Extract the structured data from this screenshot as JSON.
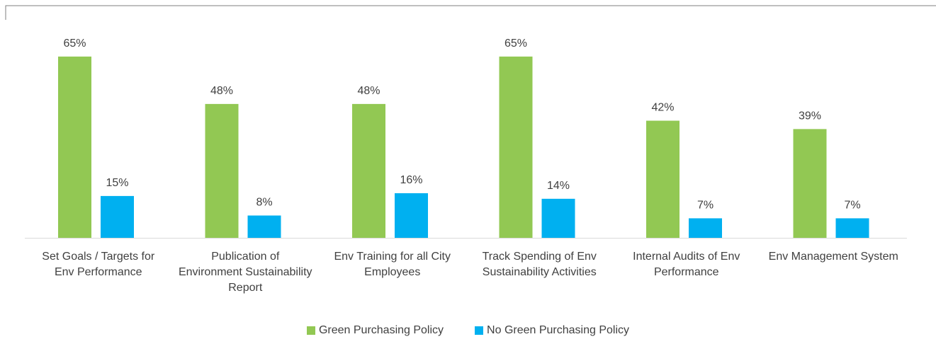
{
  "chart_data": {
    "type": "bar",
    "categories": [
      "Set Goals / Targets for Env Performance",
      "Publication of Environment Sustainability Report",
      "Env Training for all City Employees",
      "Track Spending of Env Sustainability Activities",
      "Internal Audits of Env Performance",
      "Env Management System"
    ],
    "series": [
      {
        "name": "Green Purchasing Policy",
        "color": "#92c853",
        "values": [
          65,
          48,
          48,
          65,
          42,
          39
        ],
        "value_labels": [
          "65%",
          "48%",
          "48%",
          "65%",
          "42%",
          "39%"
        ]
      },
      {
        "name": "No Green Purchasing Policy",
        "color": "#00b0f0",
        "values": [
          15,
          8,
          16,
          14,
          7,
          7
        ],
        "value_labels": [
          "15%",
          "8%",
          "16%",
          "14%",
          "7%",
          "7%"
        ]
      }
    ]
  }
}
